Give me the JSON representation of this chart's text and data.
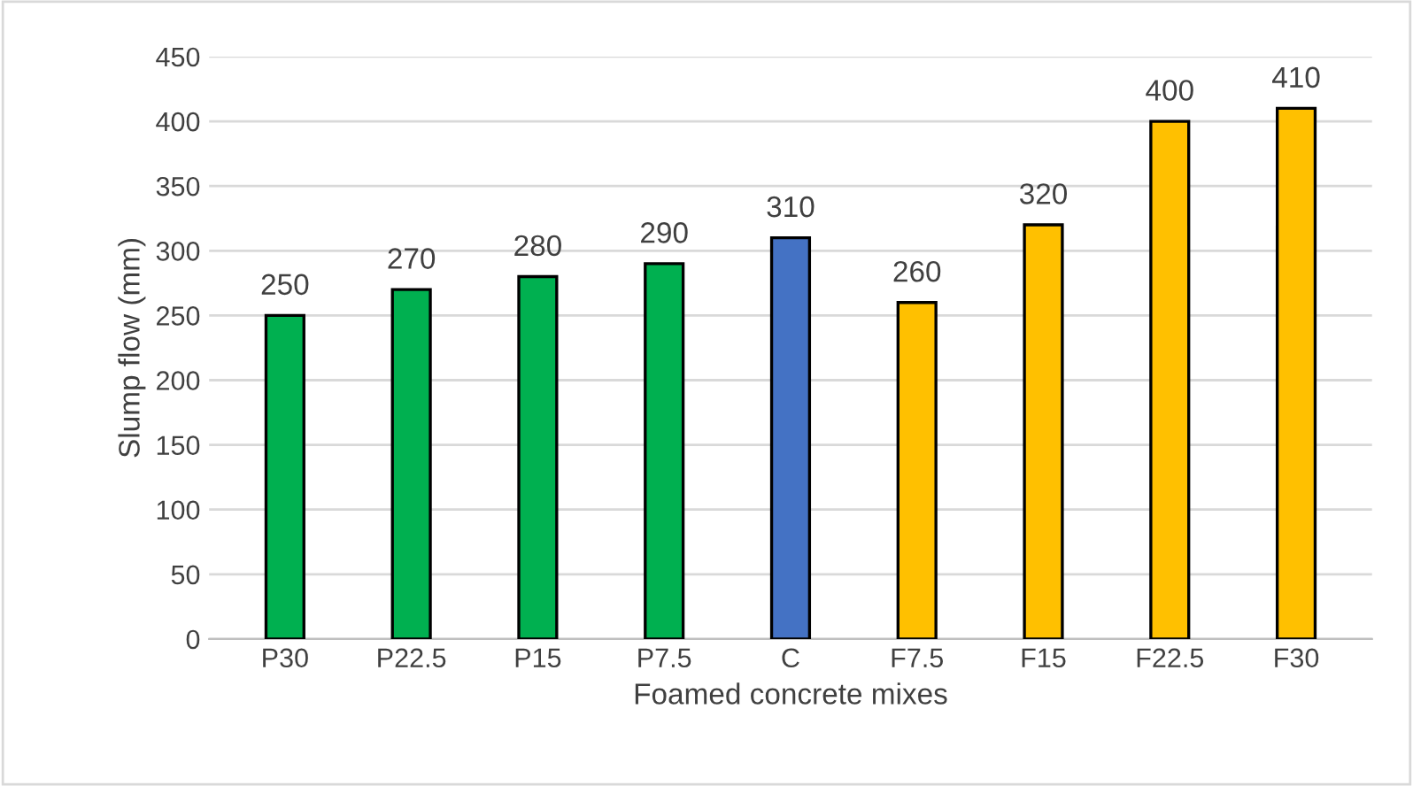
{
  "chart_data": {
    "type": "bar",
    "xlabel": "Foamed concrete mixes",
    "ylabel": "Slump flow (mm)",
    "categories": [
      "P30",
      "P22.5",
      "P15",
      "P7.5",
      "C",
      "F7.5",
      "F15",
      "F22.5",
      "F30"
    ],
    "values": [
      250,
      270,
      280,
      290,
      310,
      260,
      320,
      400,
      410
    ],
    "colors": [
      "#00b050",
      "#00b050",
      "#00b050",
      "#00b050",
      "#4472c4",
      "#ffc000",
      "#ffc000",
      "#ffc000",
      "#ffc000"
    ],
    "ylim": [
      0,
      450
    ],
    "yticks": [
      0,
      50,
      100,
      150,
      200,
      250,
      300,
      350,
      400,
      450
    ],
    "grid": "y",
    "data_labels": true
  }
}
